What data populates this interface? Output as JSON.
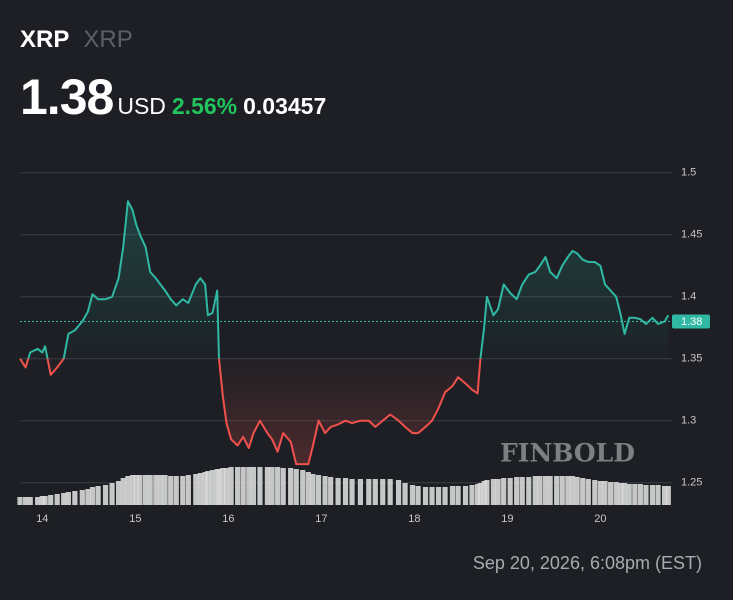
{
  "header": {
    "symbol": "XRP",
    "name": "XRP",
    "price": "1.38",
    "currency": "USD",
    "change_pct": "2.56%",
    "change": "0.03457"
  },
  "timestamp": "Sep 20, 2026, 6:08pm (EST)",
  "chart_data": {
    "type": "line",
    "watermark": "FINBOLD",
    "x": [
      13.76,
      13.82,
      13.87,
      13.95,
      14.0,
      14.03,
      14.09,
      14.16,
      14.23,
      14.28,
      14.35,
      14.43,
      14.49,
      14.54,
      14.6,
      14.68,
      14.75,
      14.82,
      14.87,
      14.92,
      14.97,
      15.01,
      15.05,
      15.11,
      15.16,
      15.22,
      15.27,
      15.32,
      15.38,
      15.44,
      15.51,
      15.57,
      15.65,
      15.7,
      15.75,
      15.78,
      15.83,
      15.88,
      15.9,
      15.94,
      15.98,
      16.03,
      16.1,
      16.16,
      16.22,
      16.27,
      16.34,
      16.42,
      16.47,
      16.53,
      16.59,
      16.67,
      16.73,
      16.8,
      16.86,
      16.91,
      16.97,
      17.04,
      17.1,
      17.18,
      17.26,
      17.33,
      17.42,
      17.51,
      17.58,
      17.66,
      17.74,
      17.83,
      17.9,
      17.98,
      18.04,
      18.12,
      18.19,
      18.26,
      18.33,
      18.41,
      18.47,
      18.55,
      18.62,
      18.68,
      18.71,
      18.75,
      18.78,
      18.85,
      18.9,
      18.96,
      19.03,
      19.1,
      19.16,
      19.23,
      19.3,
      19.35,
      19.41,
      19.46,
      19.53,
      19.59,
      19.65,
      19.7,
      19.75,
      19.81,
      19.87,
      19.94,
      20.0,
      20.05,
      20.11,
      20.17,
      20.22,
      20.26,
      20.31,
      20.37,
      20.43,
      20.49,
      20.56,
      20.62,
      20.69,
      20.73
    ],
    "values": [
      1.35,
      1.343,
      1.355,
      1.358,
      1.355,
      1.36,
      1.337,
      1.343,
      1.35,
      1.37,
      1.373,
      1.38,
      1.388,
      1.402,
      1.398,
      1.398,
      1.4,
      1.415,
      1.44,
      1.477,
      1.47,
      1.458,
      1.45,
      1.44,
      1.42,
      1.415,
      1.41,
      1.405,
      1.398,
      1.393,
      1.398,
      1.395,
      1.41,
      1.415,
      1.41,
      1.385,
      1.387,
      1.405,
      1.35,
      1.32,
      1.298,
      1.285,
      1.28,
      1.287,
      1.278,
      1.29,
      1.3,
      1.29,
      1.285,
      1.275,
      1.29,
      1.283,
      1.265,
      1.265,
      1.265,
      1.28,
      1.3,
      1.29,
      1.295,
      1.297,
      1.3,
      1.298,
      1.3,
      1.3,
      1.295,
      1.3,
      1.305,
      1.3,
      1.295,
      1.29,
      1.29,
      1.295,
      1.3,
      1.31,
      1.323,
      1.328,
      1.335,
      1.33,
      1.325,
      1.322,
      1.35,
      1.375,
      1.4,
      1.385,
      1.39,
      1.41,
      1.403,
      1.398,
      1.41,
      1.418,
      1.42,
      1.425,
      1.432,
      1.42,
      1.415,
      1.425,
      1.432,
      1.437,
      1.435,
      1.43,
      1.428,
      1.428,
      1.425,
      1.41,
      1.405,
      1.4,
      1.385,
      1.37,
      1.383,
      1.383,
      1.382,
      1.378,
      1.383,
      1.378,
      1.38,
      1.385
    ],
    "volume": [
      8,
      8,
      8,
      8,
      9,
      9,
      10,
      11,
      12,
      13,
      14,
      15,
      16,
      18,
      19,
      20,
      22,
      24,
      27,
      29,
      30,
      30,
      30,
      30,
      30,
      30,
      30,
      30,
      29,
      29,
      29,
      30,
      31,
      32,
      33,
      34,
      35,
      36,
      36,
      37,
      37,
      38,
      38,
      38,
      38,
      38,
      38,
      38,
      38,
      38,
      37,
      37,
      36,
      35,
      33,
      31,
      30,
      29,
      28,
      27,
      27,
      26,
      26,
      26,
      26,
      26,
      26,
      25,
      22,
      20,
      19,
      18,
      18,
      18,
      18,
      19,
      19,
      19,
      20,
      21,
      22,
      24,
      25,
      26,
      26,
      27,
      27,
      28,
      28,
      28,
      29,
      29,
      29,
      29,
      29,
      29,
      29,
      29,
      28,
      27,
      26,
      25,
      24,
      24,
      23,
      23,
      22,
      22,
      21,
      21,
      21,
      20,
      20,
      20,
      19,
      19
    ],
    "baseline": 1.35,
    "up_color": "#2fb8a3",
    "down_color": "#f0514c",
    "volume_color": "#d9d9d9",
    "last_price": 1.38,
    "xlim": [
      13.76,
      20.77
    ],
    "xticks": [
      14,
      15,
      16,
      17,
      18,
      19,
      20
    ],
    "ylim": [
      1.232,
      1.52
    ],
    "yticks": [
      1.25,
      1.3,
      1.35,
      1.4,
      1.45,
      1.5
    ],
    "grid": true
  }
}
